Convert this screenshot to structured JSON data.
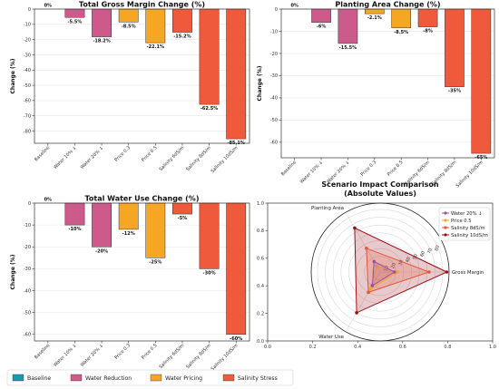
{
  "colors": {
    "baseline": "#1a9ab0",
    "water_reduction": "#cc5a8a",
    "water_pricing": "#f5a623",
    "salinity_stress": "#f05a3c",
    "radar_water20": "#a24ca6",
    "radar_price05": "#f5a623",
    "radar_salinity8": "#e4553a",
    "radar_salinity10": "#9b0e16"
  },
  "legend": {
    "items": [
      {
        "label": "Baseline",
        "color_key": "baseline"
      },
      {
        "label": "Water Reduction",
        "color_key": "water_reduction"
      },
      {
        "label": "Water Pricing",
        "color_key": "water_pricing"
      },
      {
        "label": "Salinity Stress",
        "color_key": "salinity_stress"
      }
    ]
  },
  "chart_data": [
    {
      "type": "bar",
      "title": "Total Gross Margin Change (%)",
      "ylabel": "Change (%)",
      "xlabel": "",
      "categories": [
        "Baseline",
        "Water 10% ↓",
        "Water 20% ↓",
        "Price 0.3",
        "Price 0.5",
        "Salinity 6dS/m",
        "Salinity 8dS/m",
        "Salinity 10dS/m"
      ],
      "values": [
        0,
        -5.5,
        -18.2,
        -8.5,
        -22.1,
        -15.2,
        -62.5,
        -85.1
      ],
      "data_labels": [
        "0%",
        "-5.5%",
        "-18.2%",
        "-8.5%",
        "-22.1%",
        "-15.2%",
        "-62.5%",
        "-85.1%"
      ],
      "groups": [
        "baseline",
        "water_reduction",
        "water_reduction",
        "water_pricing",
        "water_pricing",
        "salinity_stress",
        "salinity_stress",
        "salinity_stress"
      ],
      "ylim": [
        -88,
        0
      ],
      "yticks": [
        0,
        -10,
        -20,
        -30,
        -40,
        -50,
        -60,
        -70,
        -80
      ],
      "grid": true
    },
    {
      "type": "bar",
      "title": "Planting Area Change (%)",
      "ylabel": "Change (%)",
      "xlabel": "",
      "categories": [
        "Baseline",
        "Water 10% ↓",
        "Water 20% ↓",
        "Price 0.3",
        "Price 0.5",
        "Salinity 6dS/m",
        "Salinity 8dS/m",
        "Salinity 10dS/m"
      ],
      "values": [
        0,
        -6,
        -15.5,
        -2.1,
        -8.5,
        -8,
        -35,
        -65
      ],
      "data_labels": [
        "0%",
        "-6%",
        "-15.5%",
        "-2.1%",
        "-8.5%",
        "-8%",
        "-35%",
        "-65%"
      ],
      "groups": [
        "baseline",
        "water_reduction",
        "water_reduction",
        "water_pricing",
        "water_pricing",
        "salinity_stress",
        "salinity_stress",
        "salinity_stress"
      ],
      "ylim": [
        -67,
        0
      ],
      "yticks": [
        0,
        -10,
        -20,
        -30,
        -40,
        -50,
        -60
      ],
      "grid": true
    },
    {
      "type": "bar",
      "title": "Total Water Use Change (%)",
      "ylabel": "Change (%)",
      "xlabel": "",
      "categories": [
        "Baseline",
        "Water 10% ↓",
        "Water 20% ↓",
        "Price 0.3",
        "Price 0.5",
        "Salinity 6dS/m",
        "Salinity 8dS/m",
        "Salinity 10dS/m"
      ],
      "values": [
        0,
        -10,
        -20,
        -12,
        -25,
        -5,
        -30,
        -60
      ],
      "data_labels": [
        "0%",
        "-10%",
        "-20%",
        "-12%",
        "-25%",
        "-5%",
        "-30%",
        "-60%"
      ],
      "groups": [
        "baseline",
        "water_reduction",
        "water_reduction",
        "water_pricing",
        "water_pricing",
        "salinity_stress",
        "salinity_stress",
        "salinity_stress"
      ],
      "ylim": [
        -63,
        0
      ],
      "yticks": [
        0,
        -10,
        -20,
        -30,
        -40,
        -50,
        -60
      ],
      "grid": true
    },
    {
      "type": "radar",
      "title": "Scenario Impact Comparison",
      "subtitle": "(Absolute Values)",
      "axes": [
        "Gross Margin",
        "Planting Area",
        "Water Use"
      ],
      "axis_angles_deg": [
        0,
        120,
        240
      ],
      "rings": [
        10,
        20,
        30,
        40,
        50,
        60,
        70,
        80
      ],
      "rmax": 88,
      "frame_ticks": {
        "x": [
          "0.0",
          "0.2",
          "0.4",
          "0.6",
          "0.8",
          "1.0"
        ],
        "y": [
          "0.0",
          "0.2",
          "0.4",
          "0.6",
          "0.8",
          "1.0"
        ]
      },
      "series": [
        {
          "name": "Water 20% ↓",
          "values": [
            18.2,
            15.5,
            20
          ],
          "color_key": "radar_water20"
        },
        {
          "name": "Price 0.5",
          "values": [
            22.1,
            8.5,
            25
          ],
          "color_key": "radar_price05"
        },
        {
          "name": "Salinity 8dS/m",
          "values": [
            62.5,
            35,
            30
          ],
          "color_key": "radar_salinity8"
        },
        {
          "name": "Salinity 10dS/m",
          "values": [
            85.1,
            65,
            60
          ],
          "color_key": "radar_salinity10"
        }
      ],
      "legend_position": "upper right"
    }
  ]
}
